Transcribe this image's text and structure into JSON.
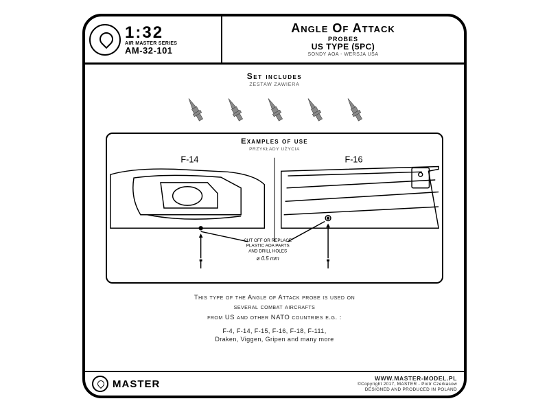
{
  "header": {
    "scale": "1:32",
    "series": "AIR MASTER SERIES",
    "sku": "AM-32-101",
    "title_main": "Angle Of Attack",
    "title_sub1": "PROBES",
    "title_sub2": "US TYPE (5PC)",
    "title_sub3": "SONDY AOA - WERSJA USA"
  },
  "set_includes": {
    "title_en": "Set includes",
    "title_pl": "ZESTAW ZAWIERA",
    "probe_count": 5,
    "probe_color": "#8a8a8a"
  },
  "examples": {
    "title_en": "Examples of use",
    "title_pl": "PRZYKŁADY UŻYCIA",
    "left_label": "F-14",
    "right_label": "F-16",
    "note_line1": "CUT OFF OR REPLACE",
    "note_line2": "PLASTIC AOA PARTS",
    "note_line3": "AND DRILL HOLES",
    "drill_dia": "ø 0.5 mm",
    "stroke_color": "#000000",
    "fill_color": "#ffffff"
  },
  "description": {
    "line1": "This type of the Angle of Attack probe is used on",
    "line2": "several combat aircrafts",
    "line3": "from US and other NATO countries e.g. :"
  },
  "aircraft": {
    "line1": "F-4, F-14, F-15, F-16, F-18, F-111,",
    "line2": "Draken, Viggen, Gripen and many more"
  },
  "footer": {
    "brand": "MASTER",
    "web": "WWW.MASTER-MODEL.PL",
    "copyright": "©Copyright 2017, MASTER - Piotr Czerkasow",
    "origin": "DESIGNED AND PRODUCED IN POLAND"
  },
  "colors": {
    "border": "#000000",
    "bg": "#ffffff",
    "text": "#000000",
    "muted": "#555555"
  }
}
